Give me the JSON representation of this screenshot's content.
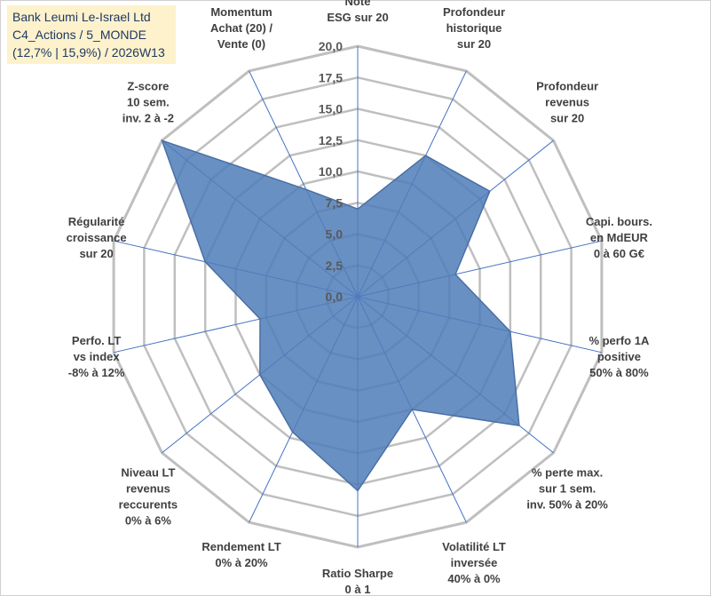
{
  "title": {
    "line1": "Bank Leumi Le-Israel Ltd",
    "line2": "C4_Actions / 5_MONDE",
    "line3": "(12,7% | 15,9%) / 2026W13"
  },
  "colors": {
    "fill": "#4f7cb8",
    "stroke": "#4a6fa5",
    "grid": "#bfbfbf",
    "spoke": "#4472c4",
    "title_bg": "#fdf2cc"
  },
  "chart_data": {
    "type": "radar",
    "rmin": 0,
    "rmax": 20,
    "step": 2.5,
    "tick_labels": [
      "0,0",
      "2,5",
      "5,0",
      "7,5",
      "10,0",
      "12,5",
      "15,0",
      "17,5",
      "20,0"
    ],
    "axes": [
      {
        "lines": [
          "Note",
          "ESG sur 20"
        ],
        "value": 7.0
      },
      {
        "lines": [
          "Profondeur",
          "historique",
          "sur 20"
        ],
        "value": 12.5
      },
      {
        "lines": [
          "Profondeur",
          "revenus",
          "sur 20"
        ],
        "value": 13.5
      },
      {
        "lines": [
          "Capi. bours.",
          "en MdEUR",
          "0 à 60 G€"
        ],
        "value": 8.0
      },
      {
        "lines": [
          "% perfo 1A",
          "positive",
          "50% à 80%"
        ],
        "value": 12.5
      },
      {
        "lines": [
          "% perte max.",
          "sur 1 sem.",
          "inv. 50% à 20%"
        ],
        "value": 16.5
      },
      {
        "lines": [
          "Volatilité LT",
          "inversée",
          "40% à 0%"
        ],
        "value": 10.0
      },
      {
        "lines": [
          "Ratio Sharpe",
          "0 à 1"
        ],
        "value": 15.5
      },
      {
        "lines": [
          "Rendement LT",
          "0% à 20%"
        ],
        "value": 12.0
      },
      {
        "lines": [
          "Niveau LT",
          "revenus",
          "reccurents",
          "0% à 6%"
        ],
        "value": 10.0
      },
      {
        "lines": [
          "Perfo. LT",
          "vs index",
          "-8% à 12%"
        ],
        "value": 8.0
      },
      {
        "lines": [
          "Régularité",
          "croissance",
          "sur 20"
        ],
        "value": 12.5
      },
      {
        "lines": [
          "Z-score",
          "10 sem.",
          "inv. 2 à -2"
        ],
        "value": 20.0
      },
      {
        "lines": [
          "Momentum",
          "Achat (20) /",
          "Vente (0)"
        ],
        "value": 9.5
      }
    ]
  }
}
